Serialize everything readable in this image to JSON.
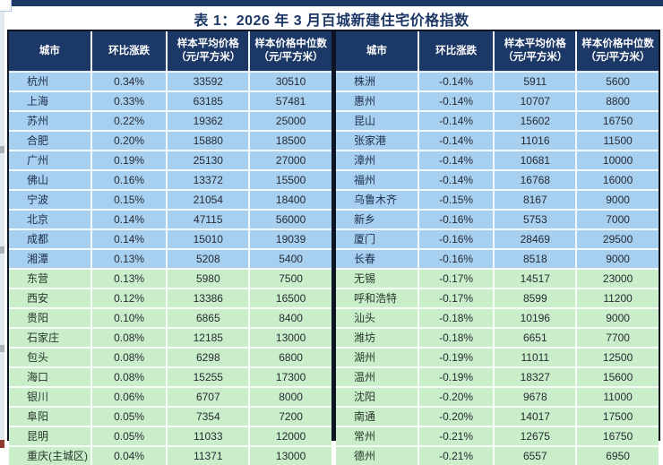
{
  "title": "表 1：2026 年 3 月百城新建住宅价格指数",
  "headers": [
    {
      "label": "城市",
      "sub": ""
    },
    {
      "label": "环比涨跌",
      "sub": ""
    },
    {
      "label": "样本平均价格",
      "sub": "（元/平方米）"
    },
    {
      "label": "样本价格中位数",
      "sub": "（元/平方米）"
    }
  ],
  "colors": {
    "navy": "#1c3866",
    "row_blue": "#a7cff0",
    "row_green": "#c9eec9",
    "frame": "#0d1424"
  },
  "tables": [
    {
      "side": "left",
      "rows": [
        {
          "city": "杭州",
          "chg": "0.34%",
          "avg": "33592",
          "median": "30510",
          "tone": "blue"
        },
        {
          "city": "上海",
          "chg": "0.33%",
          "avg": "63185",
          "median": "57481",
          "tone": "blue"
        },
        {
          "city": "苏州",
          "chg": "0.22%",
          "avg": "19362",
          "median": "25000",
          "tone": "blue"
        },
        {
          "city": "合肥",
          "chg": "0.20%",
          "avg": "15880",
          "median": "18500",
          "tone": "blue"
        },
        {
          "city": "广州",
          "chg": "0.19%",
          "avg": "25130",
          "median": "27000",
          "tone": "blue"
        },
        {
          "city": "佛山",
          "chg": "0.16%",
          "avg": "13372",
          "median": "15500",
          "tone": "blue"
        },
        {
          "city": "宁波",
          "chg": "0.15%",
          "avg": "21054",
          "median": "18400",
          "tone": "blue"
        },
        {
          "city": "北京",
          "chg": "0.14%",
          "avg": "47115",
          "median": "56000",
          "tone": "blue"
        },
        {
          "city": "成都",
          "chg": "0.14%",
          "avg": "15010",
          "median": "19039",
          "tone": "blue"
        },
        {
          "city": "湘潭",
          "chg": "0.13%",
          "avg": "5208",
          "median": "5400",
          "tone": "blue"
        },
        {
          "city": "东营",
          "chg": "0.13%",
          "avg": "5980",
          "median": "7500",
          "tone": "green"
        },
        {
          "city": "西安",
          "chg": "0.12%",
          "avg": "13386",
          "median": "16500",
          "tone": "green"
        },
        {
          "city": "贵阳",
          "chg": "0.10%",
          "avg": "6865",
          "median": "8400",
          "tone": "green"
        },
        {
          "city": "石家庄",
          "chg": "0.08%",
          "avg": "12185",
          "median": "13000",
          "tone": "green"
        },
        {
          "city": "包头",
          "chg": "0.08%",
          "avg": "6298",
          "median": "6800",
          "tone": "green"
        },
        {
          "city": "海口",
          "chg": "0.08%",
          "avg": "15255",
          "median": "17300",
          "tone": "green"
        },
        {
          "city": "银川",
          "chg": "0.06%",
          "avg": "6707",
          "median": "8000",
          "tone": "green"
        },
        {
          "city": "阜阳",
          "chg": "0.05%",
          "avg": "7354",
          "median": "7200",
          "tone": "green"
        },
        {
          "city": "昆明",
          "chg": "0.05%",
          "avg": "11033",
          "median": "12000",
          "tone": "green"
        },
        {
          "city": "重庆(主城区)",
          "chg": "0.04%",
          "avg": "11371",
          "median": "13000",
          "tone": "green"
        }
      ]
    },
    {
      "side": "right",
      "rows": [
        {
          "city": "株洲",
          "chg": "-0.14%",
          "avg": "5911",
          "median": "5600",
          "tone": "blue"
        },
        {
          "city": "惠州",
          "chg": "-0.14%",
          "avg": "10707",
          "median": "8800",
          "tone": "blue"
        },
        {
          "city": "昆山",
          "chg": "-0.14%",
          "avg": "15602",
          "median": "16750",
          "tone": "blue"
        },
        {
          "city": "张家港",
          "chg": "-0.14%",
          "avg": "11016",
          "median": "11500",
          "tone": "blue"
        },
        {
          "city": "漳州",
          "chg": "-0.14%",
          "avg": "10681",
          "median": "10000",
          "tone": "blue"
        },
        {
          "city": "福州",
          "chg": "-0.14%",
          "avg": "16768",
          "median": "16000",
          "tone": "blue"
        },
        {
          "city": "乌鲁木齐",
          "chg": "-0.15%",
          "avg": "8167",
          "median": "9000",
          "tone": "blue"
        },
        {
          "city": "新乡",
          "chg": "-0.16%",
          "avg": "5753",
          "median": "7000",
          "tone": "blue"
        },
        {
          "city": "厦门",
          "chg": "-0.16%",
          "avg": "28469",
          "median": "29500",
          "tone": "blue"
        },
        {
          "city": "长春",
          "chg": "-0.16%",
          "avg": "8518",
          "median": "9000",
          "tone": "blue"
        },
        {
          "city": "无锡",
          "chg": "-0.17%",
          "avg": "14517",
          "median": "23000",
          "tone": "green"
        },
        {
          "city": "呼和浩特",
          "chg": "-0.17%",
          "avg": "8599",
          "median": "11200",
          "tone": "green"
        },
        {
          "city": "汕头",
          "chg": "-0.18%",
          "avg": "10196",
          "median": "9000",
          "tone": "green"
        },
        {
          "city": "潍坊",
          "chg": "-0.18%",
          "avg": "6651",
          "median": "7700",
          "tone": "green"
        },
        {
          "city": "湖州",
          "chg": "-0.19%",
          "avg": "11011",
          "median": "12500",
          "tone": "green"
        },
        {
          "city": "温州",
          "chg": "-0.19%",
          "avg": "18327",
          "median": "15600",
          "tone": "green"
        },
        {
          "city": "沈阳",
          "chg": "-0.20%",
          "avg": "9678",
          "median": "11000",
          "tone": "green"
        },
        {
          "city": "南通",
          "chg": "-0.20%",
          "avg": "14017",
          "median": "17500",
          "tone": "green"
        },
        {
          "city": "常州",
          "chg": "-0.21%",
          "avg": "12675",
          "median": "16750",
          "tone": "green"
        },
        {
          "city": "德州",
          "chg": "-0.21%",
          "avg": "6557",
          "median": "6950",
          "tone": "green"
        }
      ]
    }
  ]
}
